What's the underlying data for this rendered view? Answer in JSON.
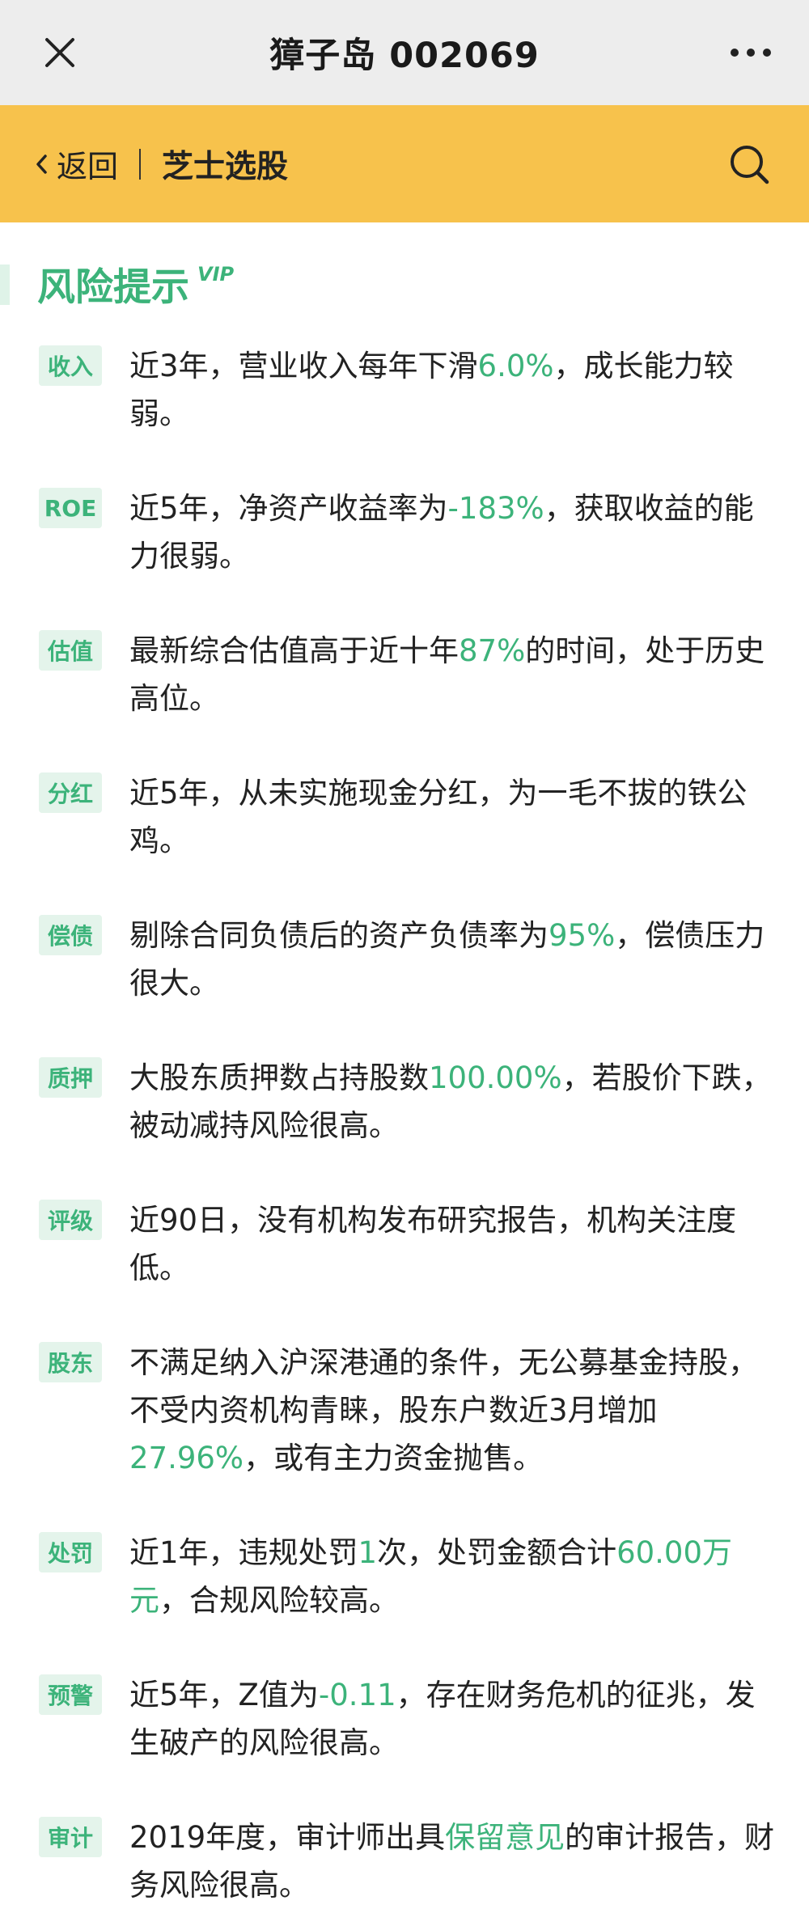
{
  "window": {
    "title": "獐子岛 002069",
    "close_icon": "close-icon",
    "more_icon": "more-icon"
  },
  "navbar": {
    "back_label": "返回",
    "brand": "芝士选股",
    "search_icon": "search-icon"
  },
  "section": {
    "title": "风险提示",
    "badge": "VIP"
  },
  "colors": {
    "accent": "#3cb37a",
    "navbar": "#f7c24c",
    "tag_bg": "#e4f4eb"
  },
  "risks": [
    {
      "tag": "收入",
      "parts": [
        {
          "t": "近3年，营业收入每年下滑"
        },
        {
          "t": "6.0%",
          "hl": true
        },
        {
          "t": "，成长能力较弱。"
        }
      ]
    },
    {
      "tag": "ROE",
      "parts": [
        {
          "t": "近5年，净资产收益率为"
        },
        {
          "t": "-183%",
          "hl": true
        },
        {
          "t": "，获取收益的能力很弱。"
        }
      ]
    },
    {
      "tag": "估值",
      "parts": [
        {
          "t": "最新综合估值高于近十年"
        },
        {
          "t": "87%",
          "hl": true
        },
        {
          "t": "的时间，处于历史高位。"
        }
      ]
    },
    {
      "tag": "分红",
      "parts": [
        {
          "t": "近5年，从未实施现金分红，为一毛不拔的铁公鸡。"
        }
      ]
    },
    {
      "tag": "偿债",
      "parts": [
        {
          "t": "剔除合同负债后的资产负债率为"
        },
        {
          "t": "95%",
          "hl": true
        },
        {
          "t": "，偿债压力很大。"
        }
      ]
    },
    {
      "tag": "质押",
      "parts": [
        {
          "t": "大股东质押数占持股数"
        },
        {
          "t": "100.00%",
          "hl": true
        },
        {
          "t": "，若股价下跌，被动减持风险很高。"
        }
      ]
    },
    {
      "tag": "评级",
      "parts": [
        {
          "t": "近90日，没有机构发布研究报告，机构关注度低。"
        }
      ]
    },
    {
      "tag": "股东",
      "parts": [
        {
          "t": "不满足纳入沪深港通的条件，无公募基金持股，不受内资机构青睐，股东户数近3月增加"
        },
        {
          "t": "27.96%",
          "hl": true
        },
        {
          "t": "，或有主力资金抛售。"
        }
      ]
    },
    {
      "tag": "处罚",
      "parts": [
        {
          "t": "近1年，违规处罚"
        },
        {
          "t": "1",
          "hl": true
        },
        {
          "t": "次，处罚金额合计"
        },
        {
          "t": "60.00万元",
          "hl": true
        },
        {
          "t": "，合规风险较高。"
        }
      ]
    },
    {
      "tag": "预警",
      "parts": [
        {
          "t": "近5年，Z值为"
        },
        {
          "t": "-0.11",
          "hl": true
        },
        {
          "t": "，存在财务危机的征兆，发生破产的风险很高。"
        }
      ]
    },
    {
      "tag": "审计",
      "parts": [
        {
          "t": "2019年度，审计师出具"
        },
        {
          "t": "保留意见",
          "hl": true
        },
        {
          "t": "的审计报告，财务风险很高。"
        }
      ]
    }
  ]
}
